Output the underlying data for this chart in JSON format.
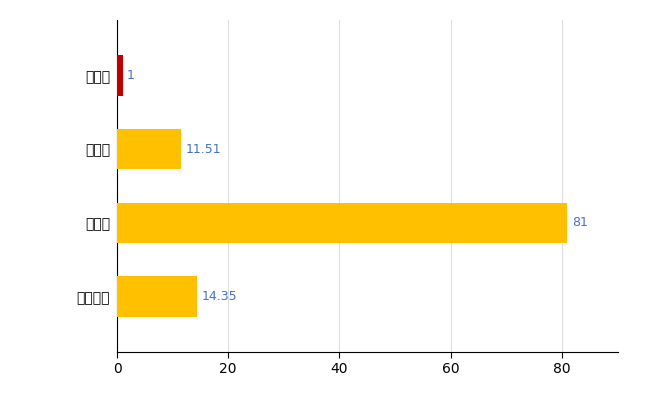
{
  "categories": [
    "全国平均",
    "県最大",
    "県平均",
    "甘楽町"
  ],
  "values": [
    14.35,
    81,
    11.51,
    1
  ],
  "bar_colors": [
    "#FFC000",
    "#FFC000",
    "#FFC000",
    "#C00000"
  ],
  "value_labels": [
    "14.35",
    "81",
    "11.51",
    "1"
  ],
  "label_color": "#4472C4",
  "xlim": [
    0,
    90
  ],
  "grid_color": "#DDDDDD",
  "bg_color": "#FFFFFF",
  "bar_height": 0.55,
  "xticks": [
    0,
    20,
    40,
    60,
    80
  ]
}
